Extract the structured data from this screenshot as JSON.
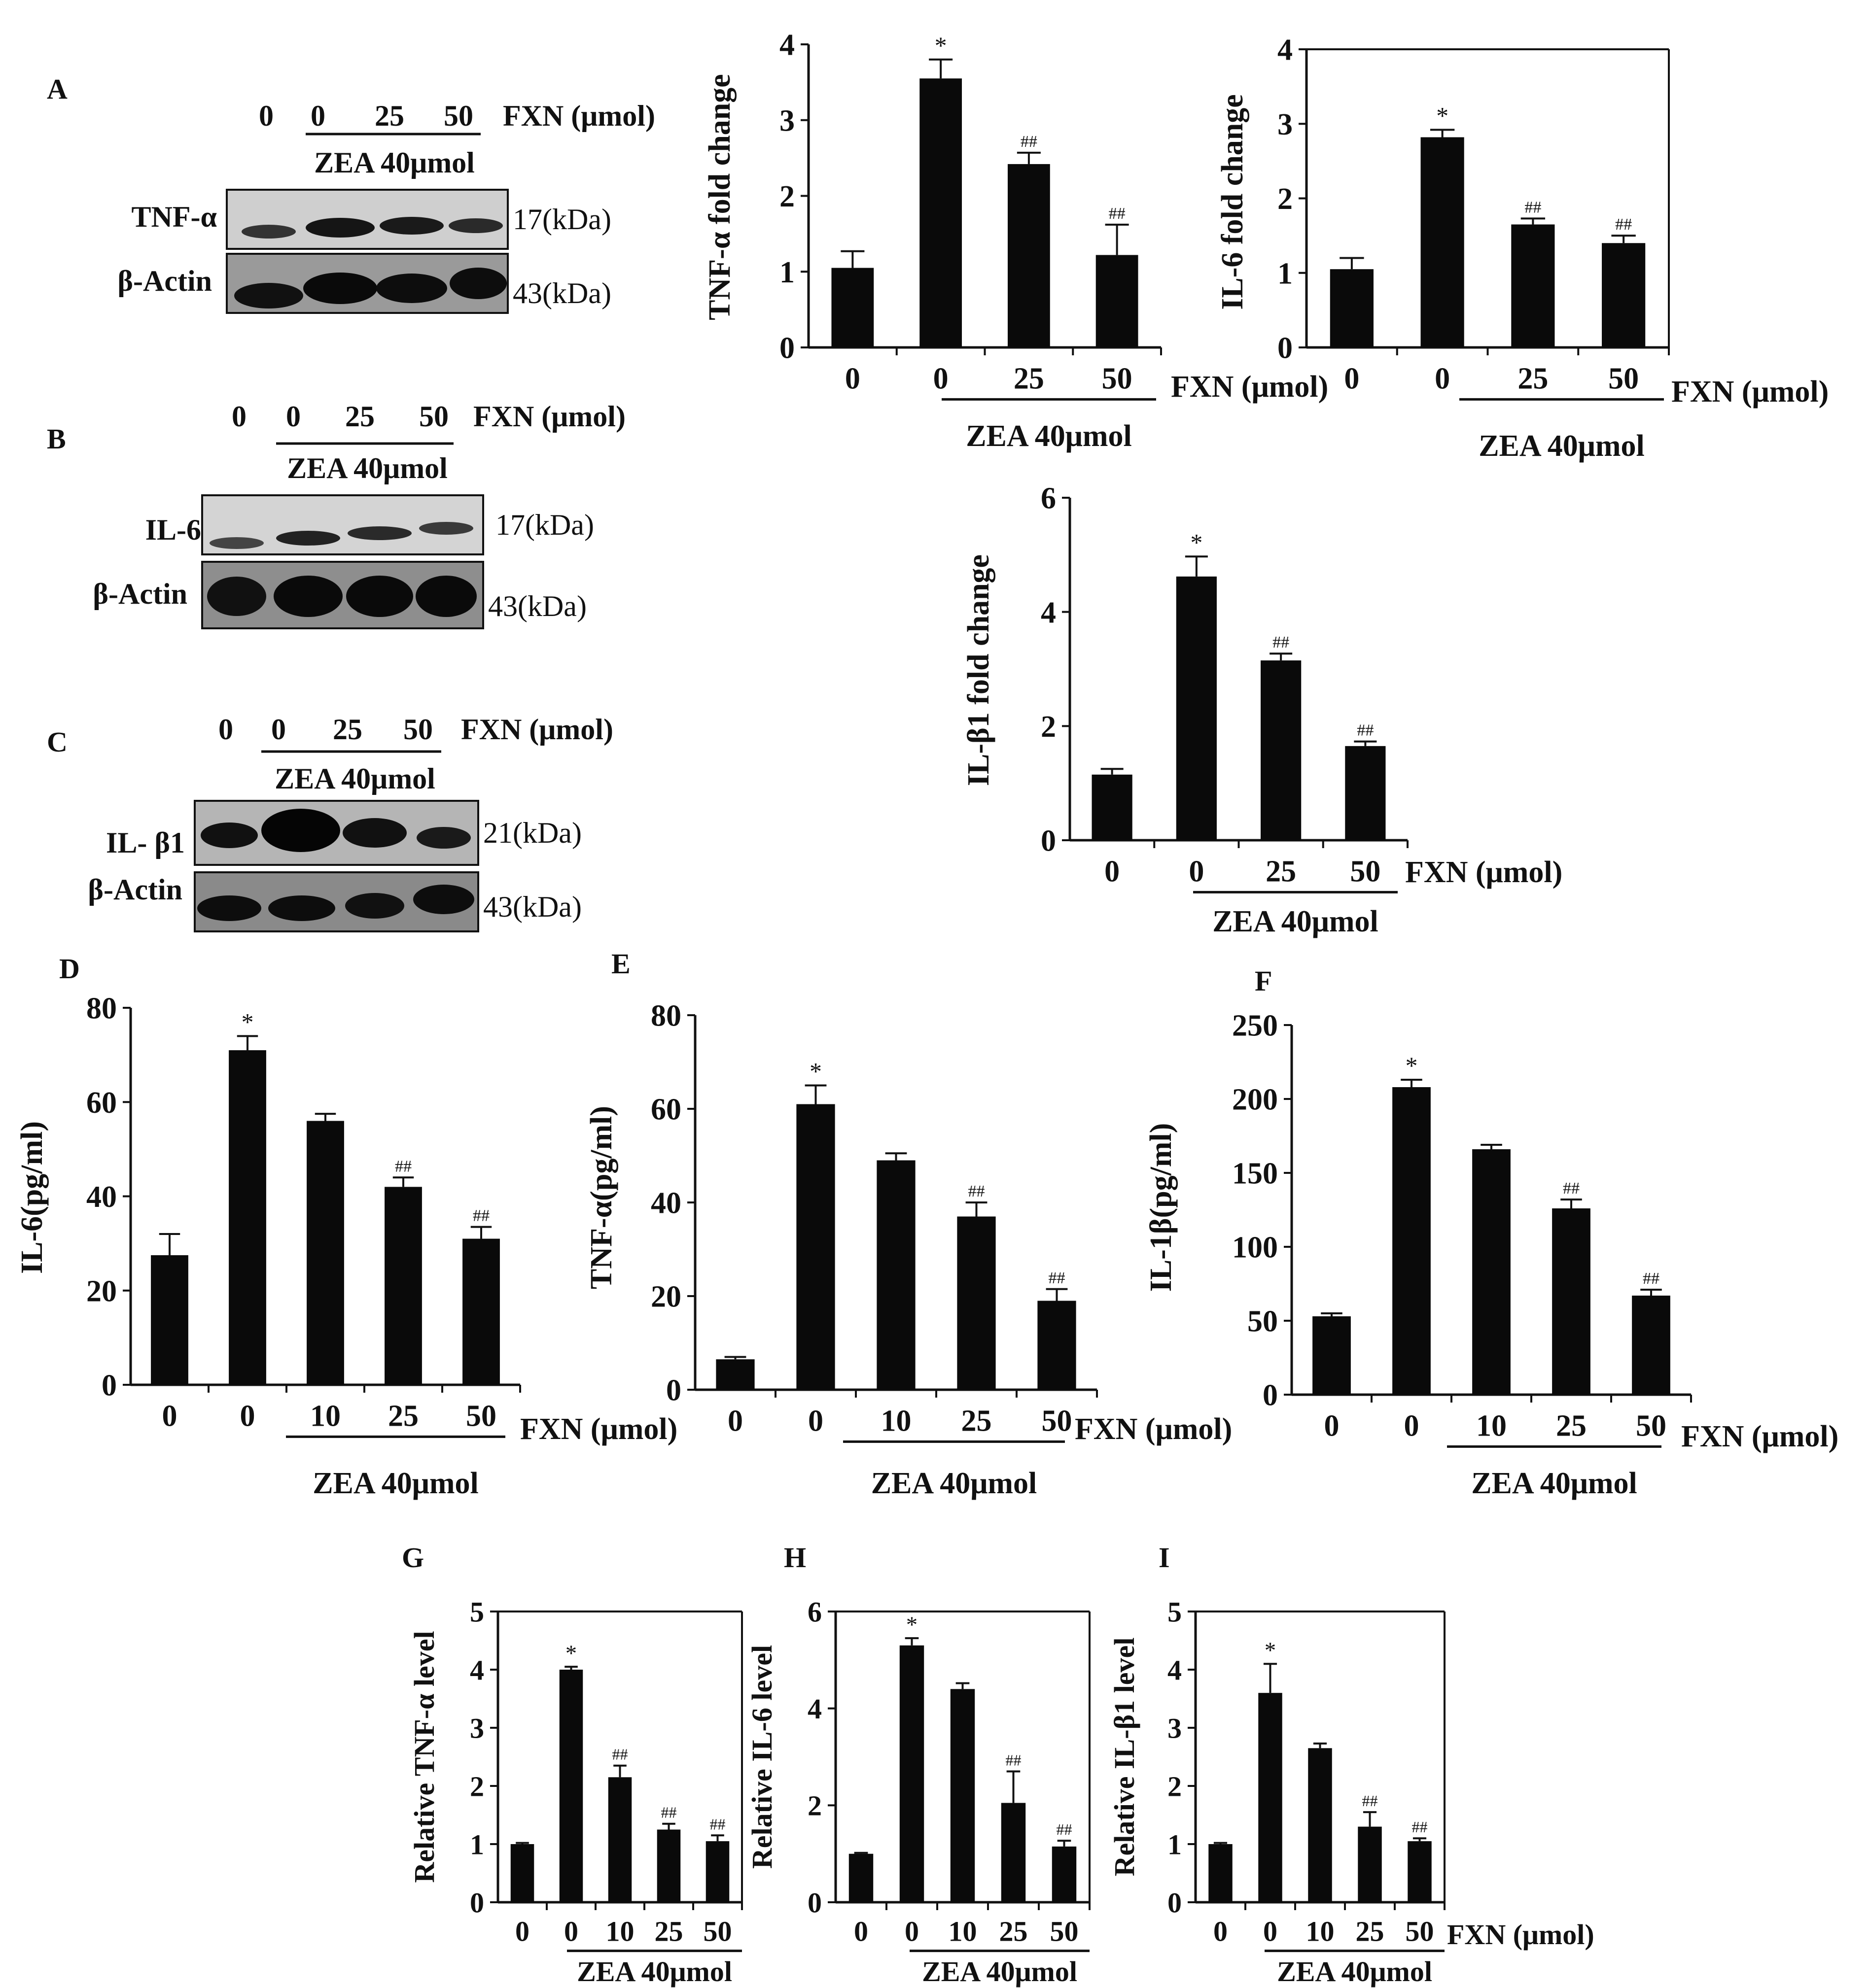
{
  "figure": {
    "panel_labels": {
      "A": "A",
      "B": "B",
      "C": "C",
      "D": "D",
      "E": "E",
      "F": "F",
      "G": "G",
      "H": "H",
      "I": "I"
    },
    "fxn_label": "FXN (μmol)",
    "zea_label": "ZEA 40μmol"
  },
  "blots": [
    {
      "panel": "A",
      "lanes": [
        "0",
        "0",
        "25",
        "50"
      ],
      "rows": [
        {
          "protein": "TNF-α",
          "size": "17(kDa)"
        },
        {
          "protein": "β-Actin",
          "size": "43(kDa)"
        }
      ]
    },
    {
      "panel": "B",
      "lanes": [
        "0",
        "0",
        "25",
        "50"
      ],
      "rows": [
        {
          "protein": "IL-6",
          "size": "17(kDa)"
        },
        {
          "protein": "β-Actin",
          "size": "43(kDa)"
        }
      ]
    },
    {
      "panel": "C",
      "lanes": [
        "0",
        "0",
        "25",
        "50"
      ],
      "rows": [
        {
          "protein": "IL- β1",
          "size": "21(kDa)"
        },
        {
          "protein": "β-Actin",
          "size": "43(kDa)"
        }
      ]
    }
  ],
  "chart_data": [
    {
      "id": "A-tnf",
      "type": "bar",
      "categories": [
        "0",
        "0",
        "25",
        "50"
      ],
      "values": [
        1.05,
        3.55,
        2.42,
        1.22
      ],
      "errors": [
        0.22,
        0.25,
        0.15,
        0.4
      ],
      "marks": [
        "",
        "*",
        "##",
        "##"
      ],
      "ylabel": "TNF-α fold change",
      "ylim": [
        0,
        4
      ],
      "yticks": [
        "0",
        "1",
        "2",
        "3",
        "4"
      ],
      "xlabel": "FXN (μmol)",
      "group_label": "ZEA 40μmol"
    },
    {
      "id": "A-il6",
      "type": "bar",
      "categories": [
        "0",
        "0",
        "25",
        "50"
      ],
      "values": [
        1.05,
        2.82,
        1.65,
        1.4
      ],
      "errors": [
        0.15,
        0.1,
        0.08,
        0.1
      ],
      "marks": [
        "",
        "*",
        "##",
        "##"
      ],
      "ylabel": "IL-6 fold change",
      "ylim": [
        0,
        4
      ],
      "yticks": [
        "0",
        "1",
        "2",
        "3",
        "4"
      ],
      "xlabel": "FXN (μmol)",
      "group_label": "ZEA 40μmol"
    },
    {
      "id": "C-il1b",
      "type": "bar",
      "categories": [
        "0",
        "0",
        "25",
        "50"
      ],
      "values": [
        1.15,
        4.62,
        3.15,
        1.65
      ],
      "errors": [
        0.1,
        0.35,
        0.12,
        0.08
      ],
      "marks": [
        "",
        "*",
        "##",
        "##"
      ],
      "ylabel": "IL-β1 fold change",
      "ylim": [
        0,
        6
      ],
      "yticks": [
        "0",
        "2",
        "4",
        "6"
      ],
      "xlabel": "FXN (μmol)",
      "group_label": "ZEA 40μmol"
    },
    {
      "id": "D",
      "type": "bar",
      "categories": [
        "0",
        "0",
        "10",
        "25",
        "50"
      ],
      "values": [
        27.5,
        71,
        56,
        42,
        31
      ],
      "errors": [
        4.5,
        3,
        1.5,
        2,
        2.5
      ],
      "marks": [
        "",
        "*",
        "",
        "##",
        "##"
      ],
      "ylabel": "IL-6(pg/ml)",
      "ylim": [
        0,
        80
      ],
      "yticks": [
        "0",
        "20",
        "40",
        "60",
        "80"
      ],
      "xlabel": "FXN (μmol)",
      "group_label": "ZEA 40μmol"
    },
    {
      "id": "E",
      "type": "bar",
      "categories": [
        "0",
        "0",
        "10",
        "25",
        "50"
      ],
      "values": [
        6.5,
        61,
        49,
        37,
        19
      ],
      "errors": [
        0.5,
        4,
        1.5,
        3,
        2.5
      ],
      "marks": [
        "",
        "*",
        "",
        "##",
        "##"
      ],
      "ylabel": "TNF-α(pg/ml)",
      "ylim": [
        0,
        80
      ],
      "yticks": [
        "0",
        "20",
        "40",
        "60",
        "80"
      ],
      "xlabel": "FXN (μmol)",
      "group_label": "ZEA 40μmol"
    },
    {
      "id": "F",
      "type": "bar",
      "categories": [
        "0",
        "0",
        "10",
        "25",
        "50"
      ],
      "values": [
        53,
        208,
        166,
        126,
        67
      ],
      "errors": [
        2,
        5,
        3,
        6,
        4
      ],
      "marks": [
        "",
        "*",
        "",
        "##",
        "##"
      ],
      "ylabel": "IL-1β(pg/ml)",
      "ylim": [
        0,
        250
      ],
      "yticks": [
        "0",
        "50",
        "100",
        "150",
        "200",
        "250"
      ],
      "xlabel": "FXN (μmol)",
      "group_label": "ZEA 40μmol"
    },
    {
      "id": "G",
      "type": "bar",
      "categories": [
        "0",
        "0",
        "10",
        "25",
        "50"
      ],
      "values": [
        1,
        4,
        2.15,
        1.25,
        1.05
      ],
      "errors": [
        0.02,
        0.05,
        0.2,
        0.1,
        0.1
      ],
      "marks": [
        "",
        "*",
        "##",
        "##",
        "##"
      ],
      "ylabel": "Relative TNF-α level",
      "ylim": [
        0,
        5
      ],
      "yticks": [
        "0",
        "1",
        "2",
        "3",
        "4",
        "5"
      ],
      "xlabel": "",
      "group_label": "ZEA 40μmol"
    },
    {
      "id": "H",
      "type": "bar",
      "categories": [
        "0",
        "0",
        "10",
        "25",
        "50"
      ],
      "values": [
        1,
        5.3,
        4.4,
        2.05,
        1.15
      ],
      "errors": [
        0.02,
        0.15,
        0.12,
        0.65,
        0.12
      ],
      "marks": [
        "",
        "*",
        "",
        "##",
        "##"
      ],
      "ylabel": "Relative IL-6 level",
      "ylim": [
        0,
        6
      ],
      "yticks": [
        "0",
        "2",
        "4",
        "6"
      ],
      "xlabel": "",
      "group_label": "ZEA 40μmol"
    },
    {
      "id": "I",
      "type": "bar",
      "categories": [
        "0",
        "0",
        "10",
        "25",
        "50"
      ],
      "values": [
        1,
        3.6,
        2.65,
        1.3,
        1.05
      ],
      "errors": [
        0.02,
        0.5,
        0.08,
        0.25,
        0.05
      ],
      "marks": [
        "",
        "*",
        "",
        "##",
        "##"
      ],
      "ylabel": "Relative IL-β1 level",
      "ylim": [
        0,
        5
      ],
      "yticks": [
        "0",
        "1",
        "2",
        "3",
        "4",
        "5"
      ],
      "xlabel": "FXN (μmol)",
      "group_label": "ZEA 40μmol"
    }
  ]
}
